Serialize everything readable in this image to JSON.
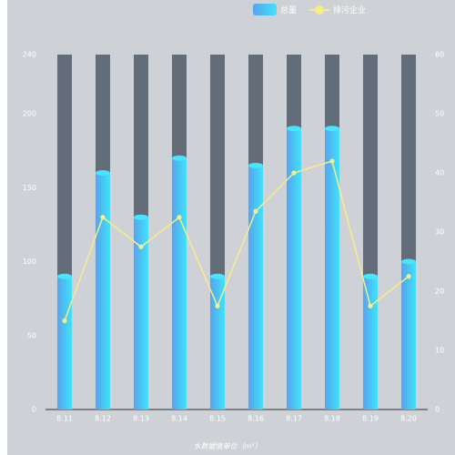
{
  "legend": {
    "bar_label": "总量",
    "line_label": "排污企业"
  },
  "footnote": "水数据值单位（m³）",
  "colors": {
    "background": "#ced2d7",
    "bar_track": "#636c79",
    "bar_gradient_start": "#5aa2ea",
    "bar_gradient_end": "#3de3ff",
    "bar_cap": "#46e6ff",
    "line": "#f6ec8a",
    "axis_text": "#ffffff"
  },
  "chart_data": {
    "type": "bar",
    "categories": [
      "8.11",
      "8.12",
      "8.13",
      "8.14",
      "8.15",
      "8.16",
      "8.17",
      "8.18",
      "8.19",
      "8.20"
    ],
    "series": [
      {
        "name": "总量",
        "type": "bar",
        "axis": "left",
        "values": [
          90,
          160,
          130,
          170,
          90,
          165,
          190,
          190,
          90,
          100
        ]
      },
      {
        "name": "排污企业",
        "type": "line",
        "axis": "right",
        "values": [
          15,
          32.5,
          27.5,
          32.5,
          17.5,
          33.5,
          40,
          42,
          17.5,
          22.5
        ]
      }
    ],
    "background_bar_max": 240,
    "y_left": {
      "min": 0,
      "max": 240,
      "ticks": [
        0,
        50,
        100,
        150,
        200,
        240
      ]
    },
    "y_right": {
      "min": 0,
      "max": 60,
      "ticks": [
        0,
        10,
        20,
        30,
        40,
        50,
        60
      ]
    },
    "legend_position": "top-right",
    "grid": false
  }
}
